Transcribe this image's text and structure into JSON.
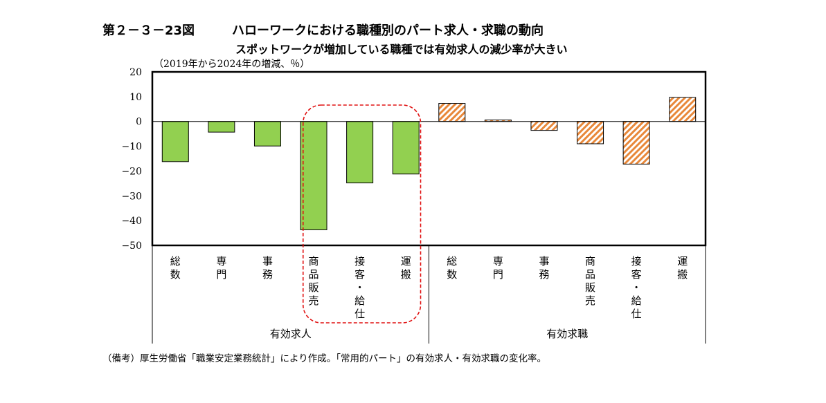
{
  "header": {
    "figure_number": "第２－３－23図",
    "title": "ハローワークにおける職種別のパート求人・求職の動向",
    "subtitle": "スポットワークが増加している職種では有効求人の減少率が大きい",
    "unit": "（2019年から2024年の増減、％）"
  },
  "note": "（備考）厚生労働省「職業安定業務統計」により作成。「常用的パート」の有効求人・有効求職の変化率。",
  "chart_data": {
    "type": "bar",
    "ylim": [
      -50,
      20
    ],
    "yticks": [
      "20",
      "10",
      "0",
      "−10",
      "−20",
      "−30",
      "−40",
      "−50"
    ],
    "grid": false,
    "groups": [
      {
        "name": "有効求人",
        "color": "#92d050",
        "categories": [
          "総数",
          "専門",
          "事務",
          "商品販売",
          "接客・給仕",
          "運搬"
        ],
        "values": [
          -16.2,
          -4.3,
          -9.9,
          -43.7,
          -24.8,
          -21.2
        ]
      },
      {
        "name": "有効求職",
        "color": "#f4a460",
        "pattern": "hatched",
        "categories": [
          "総数",
          "専門",
          "事務",
          "商品販売",
          "接客・給仕",
          "運搬"
        ],
        "values": [
          7.3,
          0.6,
          -3.6,
          -9.0,
          -17.2,
          9.7
        ]
      }
    ],
    "highlight": {
      "group": 0,
      "categories": [
        "商品販売",
        "接客・給仕",
        "運搬"
      ],
      "style": "red-dashed-rounded-box"
    }
  }
}
